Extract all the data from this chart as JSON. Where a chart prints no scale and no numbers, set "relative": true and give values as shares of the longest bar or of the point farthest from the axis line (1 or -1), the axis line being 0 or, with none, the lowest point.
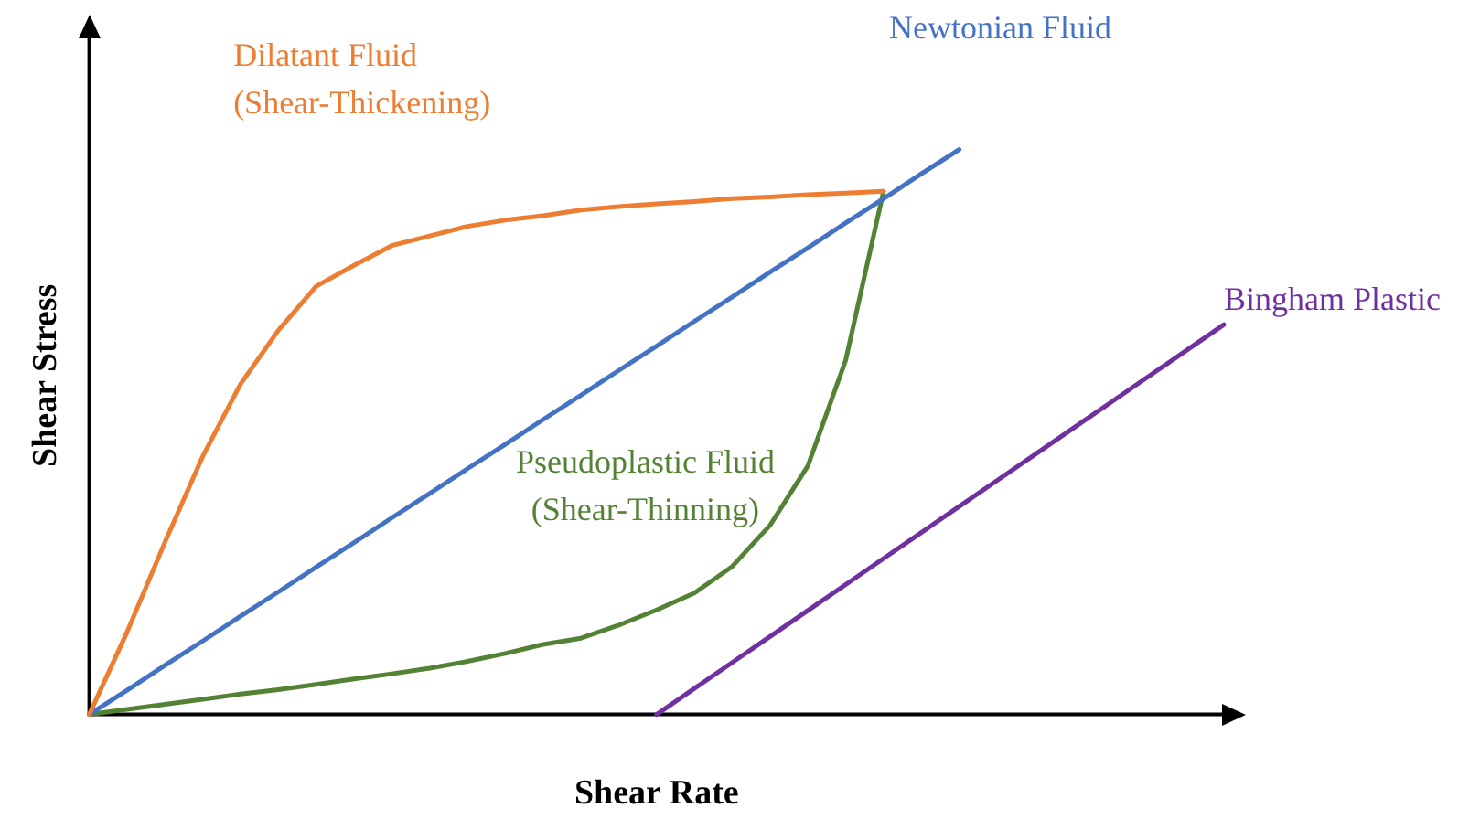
{
  "chart_data": {
    "type": "line",
    "relative": true,
    "xlabel": "Shear Rate",
    "ylabel": "Shear Stress",
    "legend": false,
    "marker": "none",
    "line_style": "solid",
    "categories": [
      null,
      null,
      null,
      null,
      null,
      null,
      null,
      null,
      null,
      null,
      null,
      null,
      null,
      null,
      null,
      null,
      null,
      null,
      null,
      null,
      null,
      null,
      null,
      null,
      null,
      null,
      null,
      null,
      null,
      null,
      null
    ],
    "series": [
      {
        "name": "Dilatant Fluid (Shear-Thickening)",
        "color": "#ed7d31",
        "values": [
          0,
          0.146,
          0.305,
          0.457,
          0.585,
          0.68,
          0.758,
          0.795,
          0.83,
          0.847,
          0.864,
          0.875,
          0.883,
          0.893,
          0.899,
          0.904,
          0.908,
          0.913,
          0.916,
          0.92,
          0.923,
          0.926,
          null,
          null,
          null,
          null,
          null,
          null,
          null,
          null,
          null
        ]
      },
      {
        "name": "Newtonian Fluid",
        "color": "#4472c4",
        "values": [
          0,
          0.043,
          0.087,
          0.13,
          0.174,
          0.217,
          0.261,
          0.304,
          0.348,
          0.391,
          0.435,
          0.478,
          0.522,
          0.565,
          0.609,
          0.652,
          0.696,
          0.739,
          0.783,
          0.826,
          0.87,
          0.913,
          0.957,
          1,
          null,
          null,
          null,
          null,
          null,
          null,
          null
        ]
      },
      {
        "name": "Pseudoplastic Fluid (Shear-Thinning)",
        "color": "#548235",
        "values": [
          0,
          0.009,
          0.018,
          0.027,
          0.036,
          0.044,
          0.053,
          0.063,
          0.072,
          0.082,
          0.094,
          0.108,
          0.124,
          0.135,
          0.158,
          0.185,
          0.215,
          0.262,
          0.335,
          0.44,
          0.627,
          0.926,
          null,
          null,
          null,
          null,
          null,
          null,
          null,
          null,
          null
        ]
      },
      {
        "name": "Bingham Plastic",
        "color": "#7030a0",
        "values": [
          null,
          null,
          null,
          null,
          null,
          null,
          null,
          null,
          null,
          null,
          null,
          null,
          null,
          null,
          null,
          0,
          0.046,
          0.092,
          0.138,
          0.184,
          0.23,
          0.276,
          0.322,
          0.368,
          0.414,
          0.46,
          0.506,
          0.552,
          0.598,
          0.644,
          0.69
        ]
      }
    ]
  }
}
